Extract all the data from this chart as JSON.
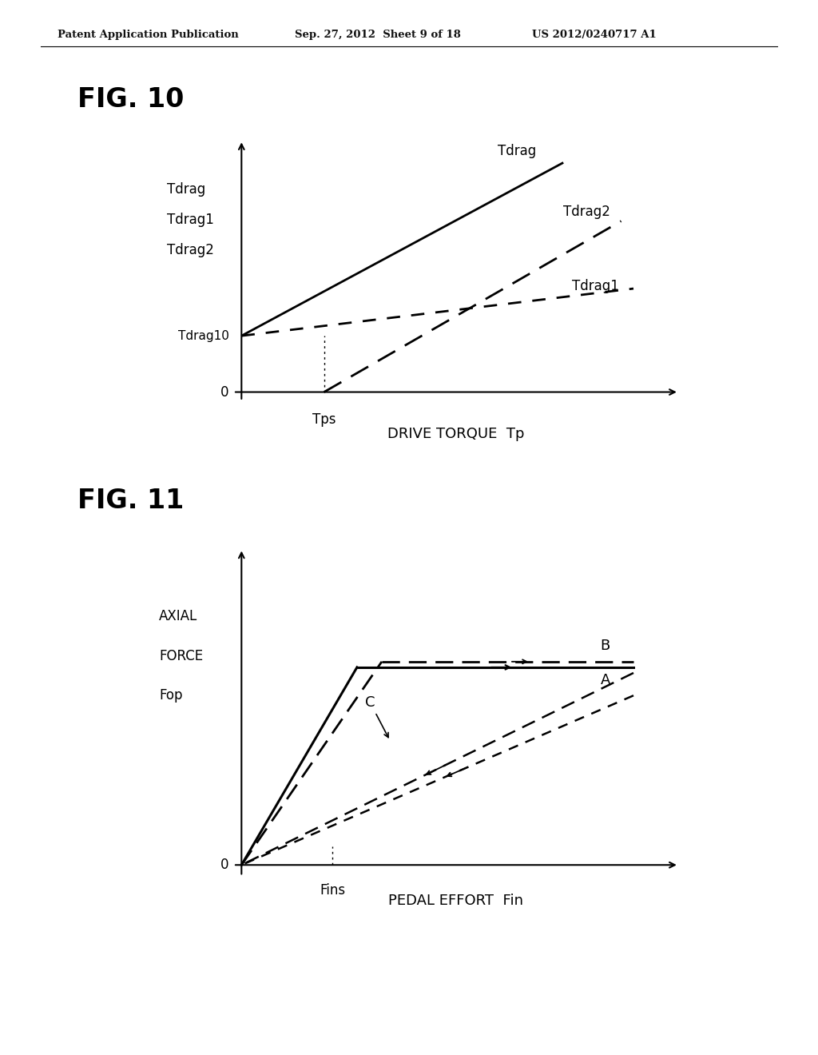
{
  "header_left": "Patent Application Publication",
  "header_mid": "Sep. 27, 2012  Sheet 9 of 18",
  "header_right": "US 2012/0240717 A1",
  "fig10_title": "FIG. 10",
  "fig11_title": "FIG. 11",
  "fig10_ylabel_lines": [
    "Tdrag",
    "Tdrag1",
    "Tdrag2"
  ],
  "fig10_xlabel": "DRIVE TORQUE  Tp",
  "fig10_tps_label": "Tps",
  "fig10_tdrag10_label": "Tdrag10",
  "fig10_zero_label": "0",
  "fig11_ylabel_lines": [
    "AXIAL",
    "FORCE",
    "Fop"
  ],
  "fig11_xlabel": "PEDAL EFFORT  Fin",
  "fig11_fins_label": "Fins",
  "fig11_zero_label": "0",
  "bg_color": "#ffffff"
}
